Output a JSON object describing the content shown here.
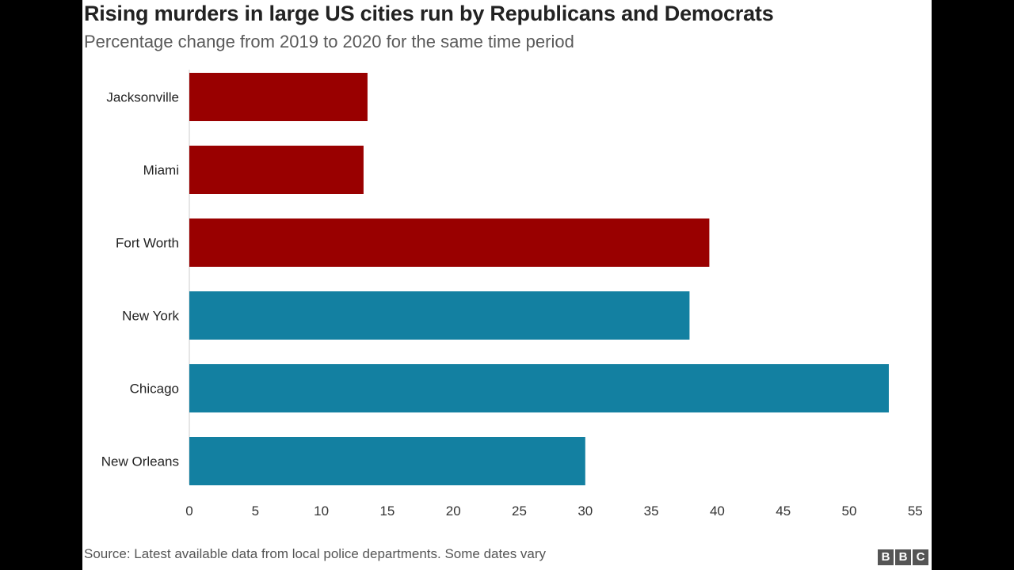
{
  "chart_data": {
    "type": "bar",
    "orientation": "horizontal",
    "title": "Rising murders in large US cities run by Republicans and Democrats",
    "subtitle": "Percentage change from 2019 to 2020 for the same time period",
    "categories": [
      "Jacksonville",
      "Miami",
      "Fort Worth",
      "New York",
      "Chicago",
      "New Orleans"
    ],
    "values": [
      13.5,
      13.2,
      39.4,
      37.9,
      53,
      30
    ],
    "bar_colors": [
      "#990000",
      "#990000",
      "#990000",
      "#1380a1",
      "#1380a1",
      "#1380a1"
    ],
    "xlim": [
      0,
      55
    ],
    "xticks": [
      0,
      5,
      10,
      15,
      20,
      25,
      30,
      35,
      40,
      45,
      50,
      55
    ],
    "xlabel": "",
    "ylabel": "",
    "grid": false,
    "legend": "none"
  },
  "footer": {
    "source": "Source: Latest available data from local police departments. Some dates vary",
    "logo_letters": [
      "B",
      "B",
      "C"
    ]
  }
}
